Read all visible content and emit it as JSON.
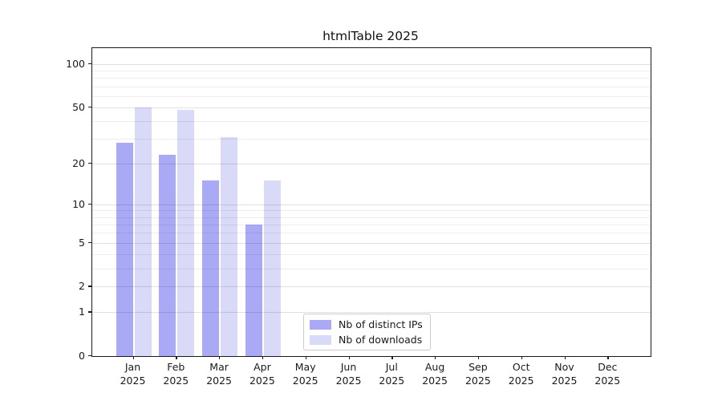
{
  "figure": {
    "title": "htmlTable 2025"
  },
  "chart_data": {
    "type": "bar",
    "title": "htmlTable 2025",
    "scale": "log1p",
    "categories": [
      "Jan",
      "Feb",
      "Mar",
      "Apr",
      "May",
      "Jun",
      "Jul",
      "Aug",
      "Sep",
      "Oct",
      "Nov",
      "Dec"
    ],
    "year_label": "2025",
    "series": [
      {
        "name": "Nb of distinct IPs",
        "color": "#a9a9f5",
        "values": [
          28,
          23,
          15,
          7,
          null,
          null,
          null,
          null,
          null,
          null,
          null,
          null
        ]
      },
      {
        "name": "Nb of downloads",
        "color": "#d9d9f8",
        "values": [
          50,
          48,
          31,
          15,
          null,
          null,
          null,
          null,
          null,
          null,
          null,
          null
        ]
      }
    ],
    "yticks": [
      0,
      1,
      2,
      5,
      10,
      20,
      50,
      100
    ],
    "minor_gridlines": [
      3,
      4,
      6,
      7,
      8,
      9,
      30,
      40,
      60,
      70,
      80,
      90
    ],
    "ylim": [
      0,
      128
    ],
    "grid": true,
    "legend_position": "lower center",
    "xlabel": "",
    "ylabel": ""
  },
  "colors": {
    "spine": "#1a1a1a",
    "text": "#1a1a1a"
  }
}
